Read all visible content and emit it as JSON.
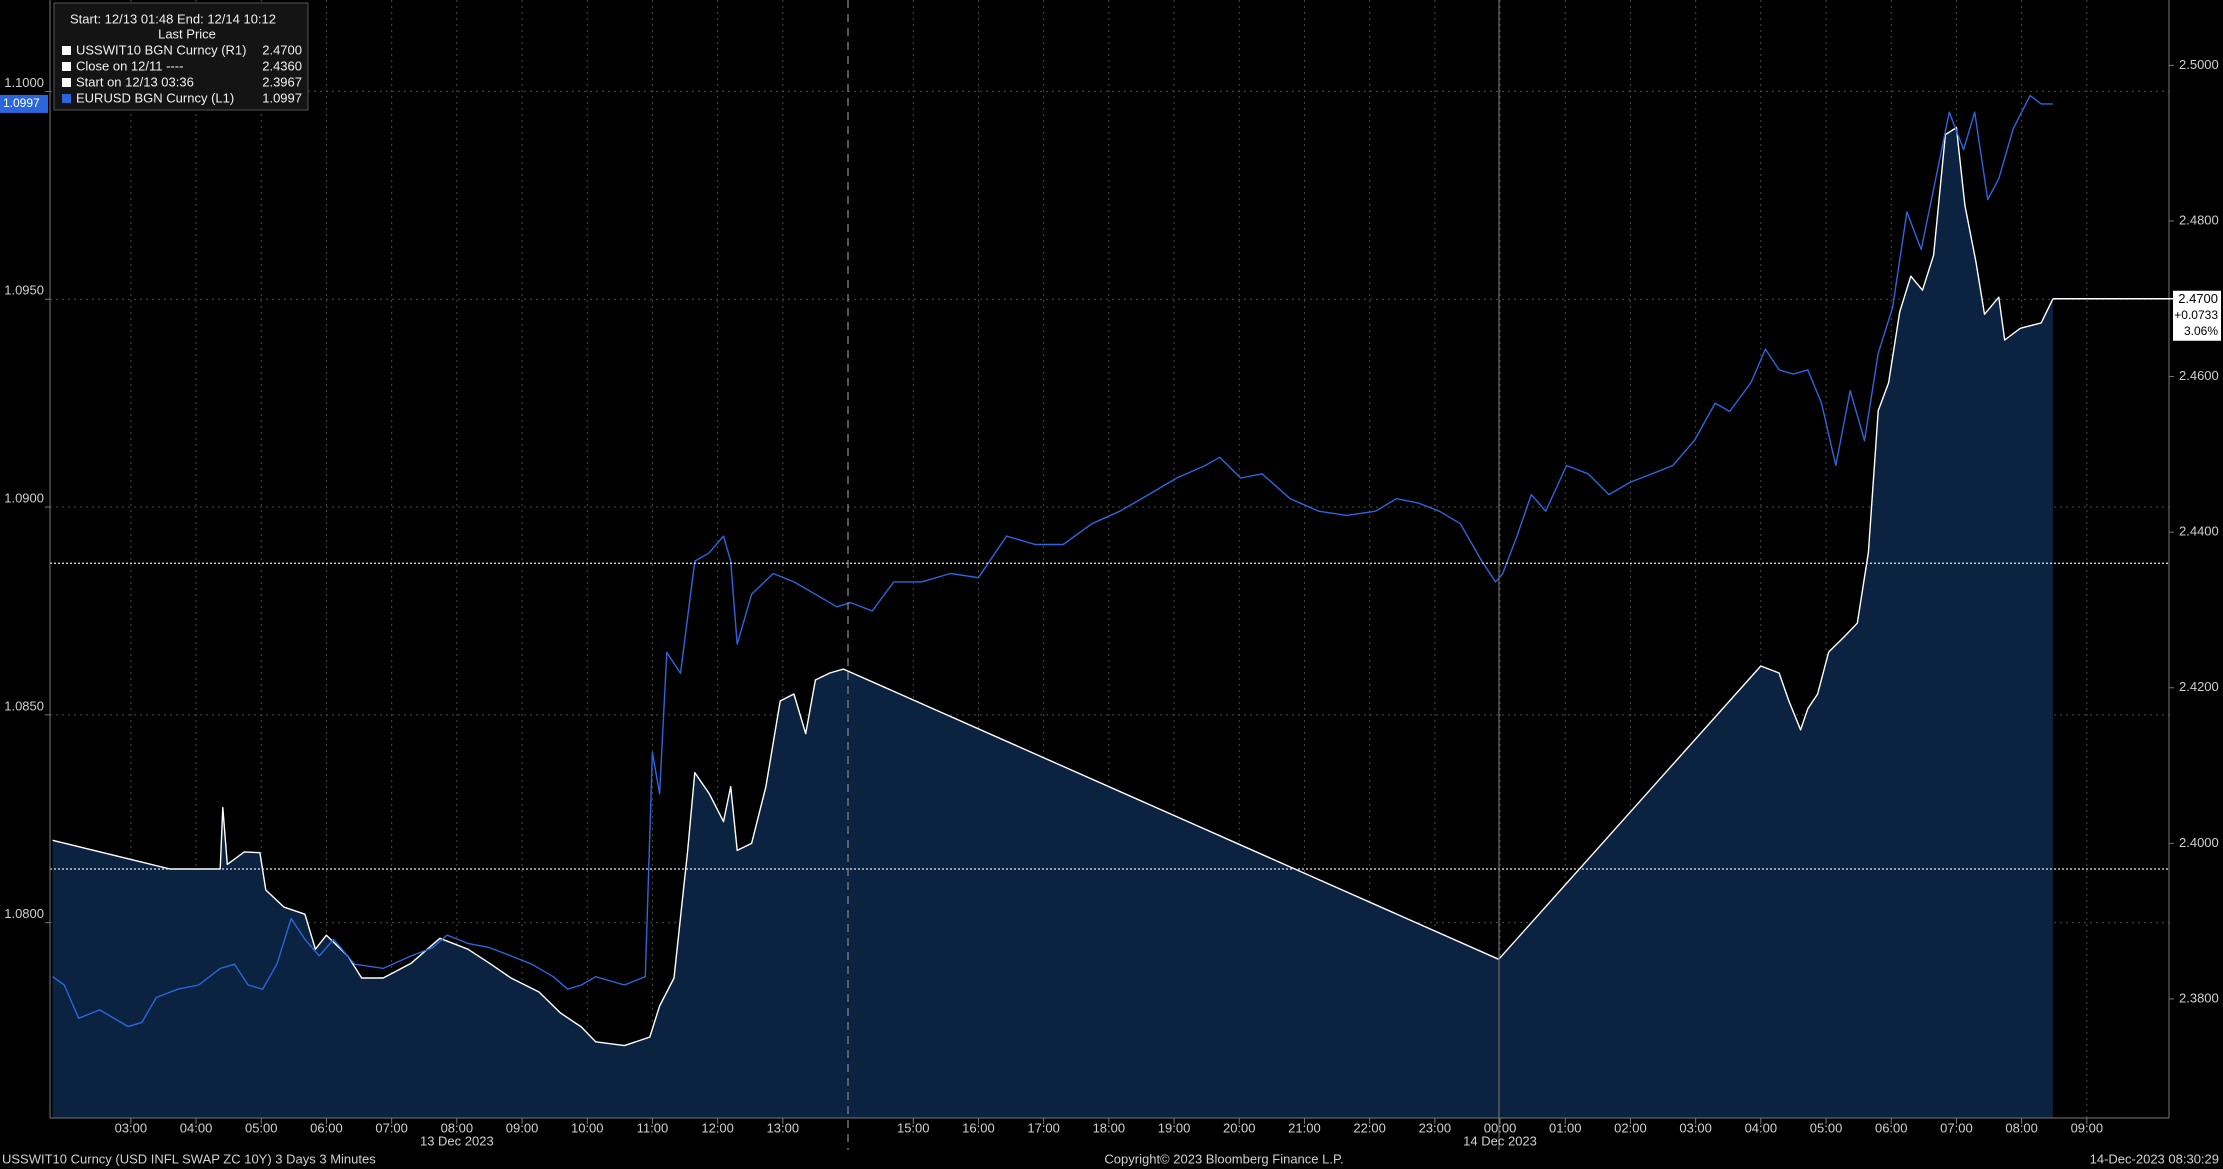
{
  "chart_data": {
    "type": "line",
    "header": "Start: 12/13 01:48 End: 12/14 10:12",
    "legend_title": "Last Price",
    "xlim": [
      1.76,
      34.26
    ],
    "xticks": [
      {
        "value": 3,
        "label": "03:00"
      },
      {
        "value": 4,
        "label": "04:00"
      },
      {
        "value": 5,
        "label": "05:00"
      },
      {
        "value": 6,
        "label": "06:00"
      },
      {
        "value": 7,
        "label": "07:00"
      },
      {
        "value": 8,
        "label": "08:00"
      },
      {
        "value": 9,
        "label": "09:00"
      },
      {
        "value": 10,
        "label": "10:00"
      },
      {
        "value": 11,
        "label": "11:00"
      },
      {
        "value": 12,
        "label": "12:00"
      },
      {
        "value": 13,
        "label": "13:00"
      },
      {
        "value": 15,
        "label": "15:00"
      },
      {
        "value": 16,
        "label": "16:00"
      },
      {
        "value": 17,
        "label": "17:00"
      },
      {
        "value": 18,
        "label": "18:00"
      },
      {
        "value": 19,
        "label": "19:00"
      },
      {
        "value": 20,
        "label": "20:00"
      },
      {
        "value": 21,
        "label": "21:00"
      },
      {
        "value": 22,
        "label": "22:00"
      },
      {
        "value": 23,
        "label": "23:00"
      },
      {
        "value": 24,
        "label": "00:00"
      },
      {
        "value": 25,
        "label": "01:00"
      },
      {
        "value": 26,
        "label": "02:00"
      },
      {
        "value": 27,
        "label": "03:00"
      },
      {
        "value": 28,
        "label": "04:00"
      },
      {
        "value": 29,
        "label": "05:00"
      },
      {
        "value": 30,
        "label": "06:00"
      },
      {
        "value": 31,
        "label": "07:00"
      },
      {
        "value": 32,
        "label": "08:00"
      },
      {
        "value": 33,
        "label": "09:00"
      }
    ],
    "date_labels": [
      {
        "value": 8,
        "label": "13 Dec 2023"
      },
      {
        "value": 24,
        "label": "14 Dec 2023"
      }
    ],
    "ylim": [
      1.0753,
      1.1022
    ],
    "yticks": [
      {
        "value": 1.08,
        "label": "1.0800"
      },
      {
        "value": 1.085,
        "label": "1.0850"
      },
      {
        "value": 1.09,
        "label": "1.0900"
      },
      {
        "value": 1.095,
        "label": "1.0950"
      },
      {
        "value": 1.1,
        "label": "1.1000"
      }
    ],
    "y2lim": [
      2.3647,
      2.5084
    ],
    "y2ticks": [
      {
        "value": 2.38,
        "label": "2.3800"
      },
      {
        "value": 2.4,
        "label": "2.4000"
      },
      {
        "value": 2.42,
        "label": "2.4200"
      },
      {
        "value": 2.44,
        "label": "2.4400"
      },
      {
        "value": 2.46,
        "label": "2.4600"
      },
      {
        "value": 2.48,
        "label": "2.4800"
      },
      {
        "value": 2.5,
        "label": "2.5000"
      }
    ],
    "grid": true,
    "series": [
      {
        "name": "USSWIT10 BGN Curncy  (R1)",
        "color": "#ffffff",
        "fill": "#0b2240",
        "axis": "y2",
        "last_value": 2.47,
        "last_label": "2.4700",
        "change_label": "+0.0733",
        "change_pct_label": "3.06%",
        "x": [
          1.8,
          3.6,
          4.37,
          4.41,
          4.48,
          4.74,
          4.98,
          5.07,
          5.35,
          5.67,
          5.83,
          6.0,
          6.33,
          6.54,
          6.87,
          7.3,
          7.74,
          8.17,
          8.5,
          8.83,
          9.26,
          9.59,
          9.91,
          10.13,
          10.57,
          10.96,
          11.11,
          11.33,
          11.54,
          11.65,
          11.87,
          12.09,
          12.2,
          12.3,
          12.52,
          12.74,
          12.96,
          13.17,
          13.35,
          13.5,
          13.72,
          13.93,
          23.98,
          28.0,
          28.28,
          28.43,
          28.61,
          28.72,
          28.87,
          29.04,
          29.26,
          29.48,
          29.65,
          29.8,
          29.96,
          30.13,
          30.3,
          30.48,
          30.65,
          30.83,
          31.0,
          31.13,
          31.3,
          31.43,
          31.65,
          31.74,
          31.98,
          32.3,
          32.48
        ],
        "values": [
          2.4004,
          2.3967,
          2.3967,
          2.4046,
          2.3973,
          2.3989,
          2.3988,
          2.394,
          2.3918,
          2.3909,
          2.3864,
          2.3882,
          2.3855,
          2.3827,
          2.3827,
          2.3846,
          2.3878,
          2.3864,
          2.3846,
          2.3827,
          2.3809,
          2.3782,
          2.3764,
          2.3745,
          2.374,
          2.3751,
          2.3791,
          2.3827,
          2.3991,
          2.4091,
          2.4064,
          2.4028,
          2.4073,
          2.3991,
          2.4,
          2.4073,
          2.4183,
          2.4192,
          2.4141,
          2.421,
          2.4219,
          2.4224,
          2.3851,
          2.4228,
          2.4219,
          2.4183,
          2.4146,
          2.4173,
          2.4192,
          2.4246,
          2.4264,
          2.4283,
          2.4374,
          2.4556,
          2.4592,
          2.4683,
          2.4729,
          2.4711,
          2.4756,
          2.4911,
          2.492,
          2.482,
          2.4747,
          2.468,
          2.4702,
          2.4647,
          2.4662,
          2.4669,
          2.47
        ]
      },
      {
        "name": "EURUSD BGN Curncy  (L1)",
        "color": "#2c66dc",
        "axis": "y",
        "last_value": 1.0997,
        "last_label": "1.0997",
        "x": [
          1.8,
          1.98,
          2.2,
          2.52,
          2.96,
          3.17,
          3.39,
          3.72,
          4.04,
          4.37,
          4.59,
          4.8,
          5.02,
          5.24,
          5.46,
          5.67,
          5.89,
          6.11,
          6.43,
          6.87,
          7.3,
          7.63,
          7.85,
          8.17,
          8.5,
          8.83,
          9.15,
          9.48,
          9.7,
          9.91,
          10.13,
          10.57,
          10.89,
          11.0,
          11.11,
          11.22,
          11.43,
          11.65,
          11.87,
          12.09,
          12.2,
          12.3,
          12.52,
          12.85,
          13.17,
          13.5,
          13.83,
          14.04,
          14.37,
          14.7,
          15.13,
          15.57,
          16.0,
          16.43,
          16.87,
          17.3,
          17.74,
          18.17,
          18.61,
          19.04,
          19.48,
          19.7,
          20.02,
          20.35,
          20.78,
          21.22,
          21.65,
          22.09,
          22.41,
          22.74,
          23.07,
          23.39,
          23.72,
          23.93,
          24.04,
          24.26,
          24.48,
          24.7,
          25.02,
          25.35,
          25.67,
          26.0,
          26.33,
          26.65,
          26.98,
          27.3,
          27.52,
          27.85,
          28.07,
          28.28,
          28.5,
          28.72,
          28.93,
          29.15,
          29.37,
          29.59,
          29.8,
          30.02,
          30.24,
          30.46,
          30.67,
          30.89,
          31.11,
          31.28,
          31.48,
          31.65,
          31.87,
          32.13,
          32.3,
          32.48
        ],
        "values": [
          1.0787,
          1.0785,
          1.0777,
          1.0779,
          1.0775,
          1.0776,
          1.0782,
          1.0784,
          1.0785,
          1.0789,
          1.079,
          1.0785,
          1.0784,
          1.079,
          1.0801,
          1.0796,
          1.0792,
          1.0796,
          1.079,
          1.0789,
          1.0792,
          1.0794,
          1.0797,
          1.0795,
          1.0794,
          1.0792,
          1.079,
          1.0787,
          1.0784,
          1.0785,
          1.0787,
          1.0785,
          1.0787,
          1.0841,
          1.0831,
          1.0865,
          1.086,
          1.0887,
          1.0889,
          1.0893,
          1.0887,
          1.0867,
          1.0879,
          1.0884,
          1.0882,
          1.0879,
          1.0876,
          1.0877,
          1.0875,
          1.0882,
          1.0882,
          1.0884,
          1.0883,
          1.0893,
          1.0891,
          1.0891,
          1.0896,
          1.0899,
          1.0903,
          1.0907,
          1.091,
          1.0912,
          1.0907,
          1.0908,
          1.0902,
          1.0899,
          1.0898,
          1.0899,
          1.0902,
          1.0901,
          1.0899,
          1.0896,
          1.0887,
          1.0882,
          1.0884,
          1.0893,
          1.0903,
          1.0899,
          1.091,
          1.0908,
          1.0903,
          1.0906,
          1.0908,
          1.091,
          1.0916,
          1.0925,
          1.0923,
          1.093,
          1.0938,
          1.0933,
          1.0932,
          1.0933,
          1.0925,
          1.091,
          1.0928,
          1.0916,
          1.0937,
          1.0948,
          1.0971,
          1.0962,
          1.0978,
          1.0995,
          1.0986,
          1.0995,
          1.0974,
          1.0979,
          1.0991,
          1.0999,
          1.0997,
          1.0997
        ]
      }
    ],
    "reference_lines": [
      {
        "name": "Close on 12/11 ----",
        "value": 2.436,
        "label": "2.4360",
        "axis": "y2"
      },
      {
        "name": "Start on 12/13 03:36",
        "value": 2.3967,
        "label": "2.3967",
        "axis": "y2"
      }
    ],
    "footer": {
      "left": "USSWIT10 Curncy (USD INFL SWAP ZC 10Y) 3 Days 3 Minutes",
      "center": "Copyright© 2023 Bloomberg Finance L.P.",
      "right": "14-Dec-2023 08:30:29"
    }
  }
}
